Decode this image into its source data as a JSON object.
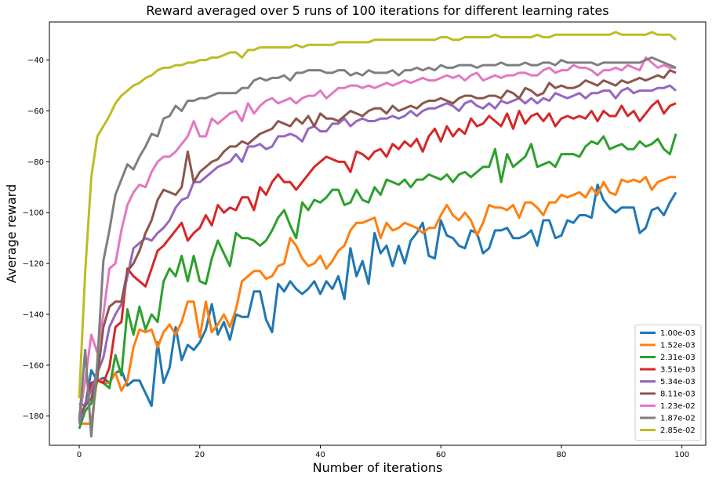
{
  "chart_data": {
    "type": "line",
    "title": "Reward averaged over 5 runs of 100 iterations for different learning rates",
    "xlabel": "Number of iterations",
    "ylabel": "Average reward",
    "xlim": [
      -4.95,
      103.95
    ],
    "ylim": [
      -191.5,
      -25
    ],
    "xticks": [
      0,
      20,
      40,
      60,
      80,
      100
    ],
    "yticks": [
      -180,
      -160,
      -140,
      -120,
      -100,
      -80,
      -60,
      -40
    ],
    "grid": false,
    "legend_position": "lower right",
    "x": [
      0,
      1,
      2,
      3,
      4,
      5,
      6,
      7,
      8,
      9,
      10,
      11,
      12,
      13,
      14,
      15,
      16,
      17,
      18,
      19,
      20,
      21,
      22,
      23,
      24,
      25,
      26,
      27,
      28,
      29,
      30,
      31,
      32,
      33,
      34,
      35,
      36,
      37,
      38,
      39,
      40,
      41,
      42,
      43,
      44,
      45,
      46,
      47,
      48,
      49,
      50,
      51,
      52,
      53,
      54,
      55,
      56,
      57,
      58,
      59,
      60,
      61,
      62,
      63,
      64,
      65,
      66,
      67,
      68,
      69,
      70,
      71,
      72,
      73,
      74,
      75,
      76,
      77,
      78,
      79,
      80,
      81,
      82,
      83,
      84,
      85,
      86,
      87,
      88,
      89,
      90,
      91,
      92,
      93,
      94,
      95,
      96,
      97,
      98,
      99
    ],
    "series": [
      {
        "name": "1.00e-03",
        "color": "#1f77b4",
        "values": [
          -175,
          -176,
          -162,
          -166,
          -165,
          -167,
          -163,
          -162,
          -168,
          -166,
          -166,
          -171,
          -176,
          -151,
          -167,
          -161,
          -145,
          -158,
          -152,
          -154,
          -151,
          -146,
          -136,
          -148,
          -143,
          -150,
          -140,
          -141,
          -141,
          -131,
          -131,
          -142,
          -147,
          -128,
          -131,
          -127,
          -130,
          -132,
          -130,
          -127,
          -132,
          -127,
          -130,
          -125,
          -134,
          -114,
          -125,
          -119,
          -128,
          -108,
          -116,
          -113,
          -121,
          -113,
          -120,
          -111,
          -108,
          -104,
          -117,
          -118,
          -103,
          -109,
          -110,
          -113,
          -114,
          -107,
          -108,
          -116,
          -114,
          -107,
          -107,
          -106,
          -110,
          -110,
          -109,
          -107,
          -113,
          -103,
          -103,
          -110,
          -109,
          -103,
          -104,
          -101,
          -101,
          -102,
          -89,
          -95,
          -98,
          -100,
          -98,
          -98,
          -98,
          -108,
          -106,
          -99,
          -98,
          -101,
          -96,
          -92
        ]
      },
      {
        "name": "1.52e-03",
        "color": "#ff7f0e",
        "values": [
          -183,
          -183,
          -183,
          -165,
          -167,
          -167,
          -163,
          -170,
          -166,
          -153,
          -146,
          -147,
          -146,
          -153,
          -147,
          -144,
          -148,
          -143,
          -135,
          -135,
          -149,
          -135,
          -147,
          -144,
          -140,
          -145,
          -138,
          -127,
          -125,
          -123,
          -123,
          -126,
          -125,
          -121,
          -120,
          -110,
          -113,
          -118,
          -121,
          -120,
          -117,
          -122,
          -119,
          -115,
          -113,
          -107,
          -104,
          -104,
          -103,
          -102,
          -110,
          -104,
          -107,
          -106,
          -104,
          -105,
          -106,
          -108,
          -106,
          -106,
          -101,
          -97,
          -101,
          -103,
          -100,
          -103,
          -109,
          -104,
          -97,
          -98,
          -98,
          -99,
          -97,
          -102,
          -96,
          -96,
          -98,
          -101,
          -96,
          -96,
          -93,
          -94,
          -93,
          -92,
          -94,
          -90,
          -93,
          -88,
          -92,
          -93,
          -87,
          -88,
          -87,
          -88,
          -86,
          -91,
          -88,
          -87,
          -86,
          -86
        ]
      },
      {
        "name": "2.31e-03",
        "color": "#2ca02c",
        "values": [
          -185,
          -178,
          -175,
          -166,
          -167,
          -169,
          -156,
          -164,
          -138,
          -148,
          -137,
          -146,
          -140,
          -143,
          -127,
          -122,
          -125,
          -117,
          -127,
          -117,
          -127,
          -128,
          -118,
          -111,
          -116,
          -121,
          -108,
          -110,
          -110,
          -111,
          -113,
          -111,
          -107,
          -102,
          -99,
          -105,
          -110,
          -96,
          -99,
          -95,
          -96,
          -94,
          -91,
          -91,
          -97,
          -96,
          -91,
          -95,
          -96,
          -90,
          -93,
          -87,
          -88,
          -89,
          -87,
          -90,
          -87,
          -87,
          -85,
          -86,
          -87,
          -85,
          -88,
          -85,
          -84,
          -86,
          -84,
          -82,
          -82,
          -75,
          -88,
          -77,
          -82,
          -80,
          -78,
          -73,
          -82,
          -81,
          -80,
          -82,
          -77,
          -77,
          -77,
          -78,
          -74,
          -72,
          -73,
          -70,
          -75,
          -74,
          -73,
          -75,
          -75,
          -72,
          -74,
          -73,
          -71,
          -75,
          -77,
          -69
        ]
      },
      {
        "name": "3.51e-03",
        "color": "#d62728",
        "values": [
          -180,
          -176,
          -167,
          -166,
          -167,
          -161,
          -145,
          -143,
          -122,
          -125,
          -127,
          -129,
          -122,
          -115,
          -113,
          -110,
          -107,
          -104,
          -111,
          -108,
          -106,
          -101,
          -105,
          -97,
          -100,
          -98,
          -99,
          -94,
          -94,
          -99,
          -90,
          -93,
          -88,
          -85,
          -88,
          -88,
          -91,
          -88,
          -85,
          -82,
          -80,
          -78,
          -79,
          -80,
          -80,
          -84,
          -76,
          -77,
          -79,
          -76,
          -75,
          -78,
          -73,
          -75,
          -72,
          -74,
          -71,
          -76,
          -70,
          -67,
          -72,
          -66,
          -70,
          -67,
          -69,
          -63,
          -66,
          -65,
          -62,
          -64,
          -66,
          -61,
          -67,
          -60,
          -65,
          -62,
          -61,
          -64,
          -61,
          -66,
          -63,
          -62,
          -63,
          -62,
          -63,
          -60,
          -64,
          -60,
          -62,
          -62,
          -58,
          -62,
          -60,
          -64,
          -61,
          -58,
          -56,
          -61,
          -58,
          -57
        ]
      },
      {
        "name": "5.34e-03",
        "color": "#9467bd",
        "values": [
          -183,
          -175,
          -170,
          -163,
          -157,
          -145,
          -140,
          -136,
          -125,
          -114,
          -112,
          -110,
          -111,
          -108,
          -106,
          -103,
          -98,
          -95,
          -94,
          -88,
          -88,
          -86,
          -84,
          -82,
          -81,
          -80,
          -77,
          -80,
          -74,
          -74,
          -73,
          -75,
          -74,
          -70,
          -70,
          -69,
          -70,
          -72,
          -67,
          -66,
          -68,
          -68,
          -65,
          -65,
          -63,
          -66,
          -64,
          -63,
          -64,
          -64,
          -63,
          -63,
          -62,
          -63,
          -62,
          -60,
          -62,
          -60,
          -59,
          -59,
          -58,
          -57,
          -58,
          -60,
          -57,
          -56,
          -58,
          -59,
          -57,
          -59,
          -56,
          -57,
          -56,
          -55,
          -57,
          -55,
          -57,
          -55,
          -56,
          -53,
          -54,
          -55,
          -54,
          -53,
          -55,
          -53,
          -53,
          -52,
          -52,
          -55,
          -52,
          -51,
          -53,
          -52,
          -52,
          -52,
          -51,
          -51,
          -50,
          -52
        ]
      },
      {
        "name": "8.11e-03",
        "color": "#8c564b",
        "values": [
          -180,
          -176,
          -173,
          -165,
          -145,
          -137,
          -135,
          -135,
          -123,
          -120,
          -115,
          -108,
          -103,
          -95,
          -91,
          -92,
          -93,
          -90,
          -76,
          -88,
          -84,
          -82,
          -80,
          -79,
          -76,
          -74,
          -74,
          -72,
          -73,
          -71,
          -69,
          -68,
          -67,
          -64,
          -65,
          -66,
          -63,
          -65,
          -62,
          -66,
          -61,
          -63,
          -63,
          -64,
          -62,
          -60,
          -61,
          -62,
          -60,
          -59,
          -59,
          -61,
          -58,
          -60,
          -59,
          -58,
          -59,
          -57,
          -56,
          -56,
          -55,
          -56,
          -57,
          -55,
          -54,
          -54,
          -55,
          -55,
          -54,
          -54,
          -55,
          -52,
          -53,
          -55,
          -51,
          -52,
          -54,
          -53,
          -49,
          -51,
          -50,
          -51,
          -51,
          -50,
          -48,
          -49,
          -50,
          -48,
          -49,
          -50,
          -48,
          -49,
          -48,
          -47,
          -48,
          -47,
          -46,
          -47,
          -44,
          -45
        ]
      },
      {
        "name": "1.23e-02",
        "color": "#e377c2",
        "values": [
          -181,
          -166,
          -148,
          -155,
          -140,
          -122,
          -120,
          -107,
          -97,
          -92,
          -89,
          -90,
          -84,
          -80,
          -78,
          -78,
          -76,
          -73,
          -70,
          -64,
          -70,
          -70,
          -63,
          -65,
          -63,
          -61,
          -60,
          -64,
          -57,
          -61,
          -58,
          -56,
          -55,
          -57,
          -56,
          -55,
          -57,
          -55,
          -54,
          -54,
          -52,
          -55,
          -53,
          -51,
          -51,
          -50,
          -50,
          -51,
          -50,
          -51,
          -50,
          -49,
          -50,
          -49,
          -48,
          -49,
          -48,
          -47,
          -48,
          -48,
          -47,
          -46,
          -47,
          -46,
          -48,
          -46,
          -45,
          -48,
          -47,
          -46,
          -47,
          -46,
          -46,
          -45,
          -45,
          -46,
          -46,
          -44,
          -43,
          -45,
          -44,
          -44,
          -42,
          -43,
          -43,
          -44,
          -46,
          -44,
          -44,
          -43,
          -44,
          -42,
          -43,
          -44,
          -39,
          -41,
          -43,
          -42,
          -43,
          -43
        ]
      },
      {
        "name": "1.87e-02",
        "color": "#7f7f7f",
        "values": [
          -182,
          -154,
          -188,
          -159,
          -119,
          -107,
          -93,
          -87,
          -81,
          -83,
          -78,
          -74,
          -69,
          -70,
          -63,
          -62,
          -58,
          -60,
          -56,
          -56,
          -55,
          -55,
          -54,
          -53,
          -53,
          -53,
          -53,
          -51,
          -51,
          -48,
          -47,
          -48,
          -47,
          -47,
          -46,
          -48,
          -45,
          -45,
          -44,
          -44,
          -44,
          -45,
          -45,
          -44,
          -44,
          -46,
          -45,
          -46,
          -44,
          -45,
          -45,
          -45,
          -44,
          -46,
          -44,
          -44,
          -43,
          -44,
          -43,
          -44,
          -42,
          -43,
          -43,
          -42,
          -42,
          -42,
          -43,
          -42,
          -42,
          -42,
          -41,
          -42,
          -42,
          -42,
          -41,
          -42,
          -42,
          -41,
          -41,
          -42,
          -40,
          -41,
          -41,
          -41,
          -41,
          -41,
          -42,
          -41,
          -41,
          -41,
          -41,
          -41,
          -41,
          -41,
          -40,
          -39,
          -40,
          -41,
          -42,
          -43
        ]
      },
      {
        "name": "2.85e-02",
        "color": "#bcbd22",
        "values": [
          -173,
          -123,
          -86,
          -70,
          -66,
          -62,
          -57,
          -54,
          -52,
          -50,
          -49,
          -47,
          -46,
          -44,
          -43,
          -43,
          -42,
          -42,
          -41,
          -41,
          -40,
          -40,
          -39,
          -39,
          -38,
          -37,
          -37,
          -39,
          -36,
          -36,
          -35,
          -35,
          -35,
          -35,
          -35,
          -35,
          -34,
          -35,
          -34,
          -34,
          -34,
          -34,
          -34,
          -33,
          -33,
          -33,
          -33,
          -33,
          -33,
          -32,
          -32,
          -32,
          -32,
          -32,
          -32,
          -32,
          -32,
          -32,
          -32,
          -32,
          -31,
          -31,
          -32,
          -32,
          -31,
          -31,
          -31,
          -31,
          -31,
          -30,
          -31,
          -31,
          -31,
          -31,
          -31,
          -31,
          -30,
          -31,
          -31,
          -30,
          -30,
          -30,
          -30,
          -30,
          -30,
          -30,
          -30,
          -30,
          -30,
          -29,
          -30,
          -30,
          -30,
          -30,
          -30,
          -29,
          -30,
          -30,
          -30,
          -32
        ]
      }
    ]
  }
}
